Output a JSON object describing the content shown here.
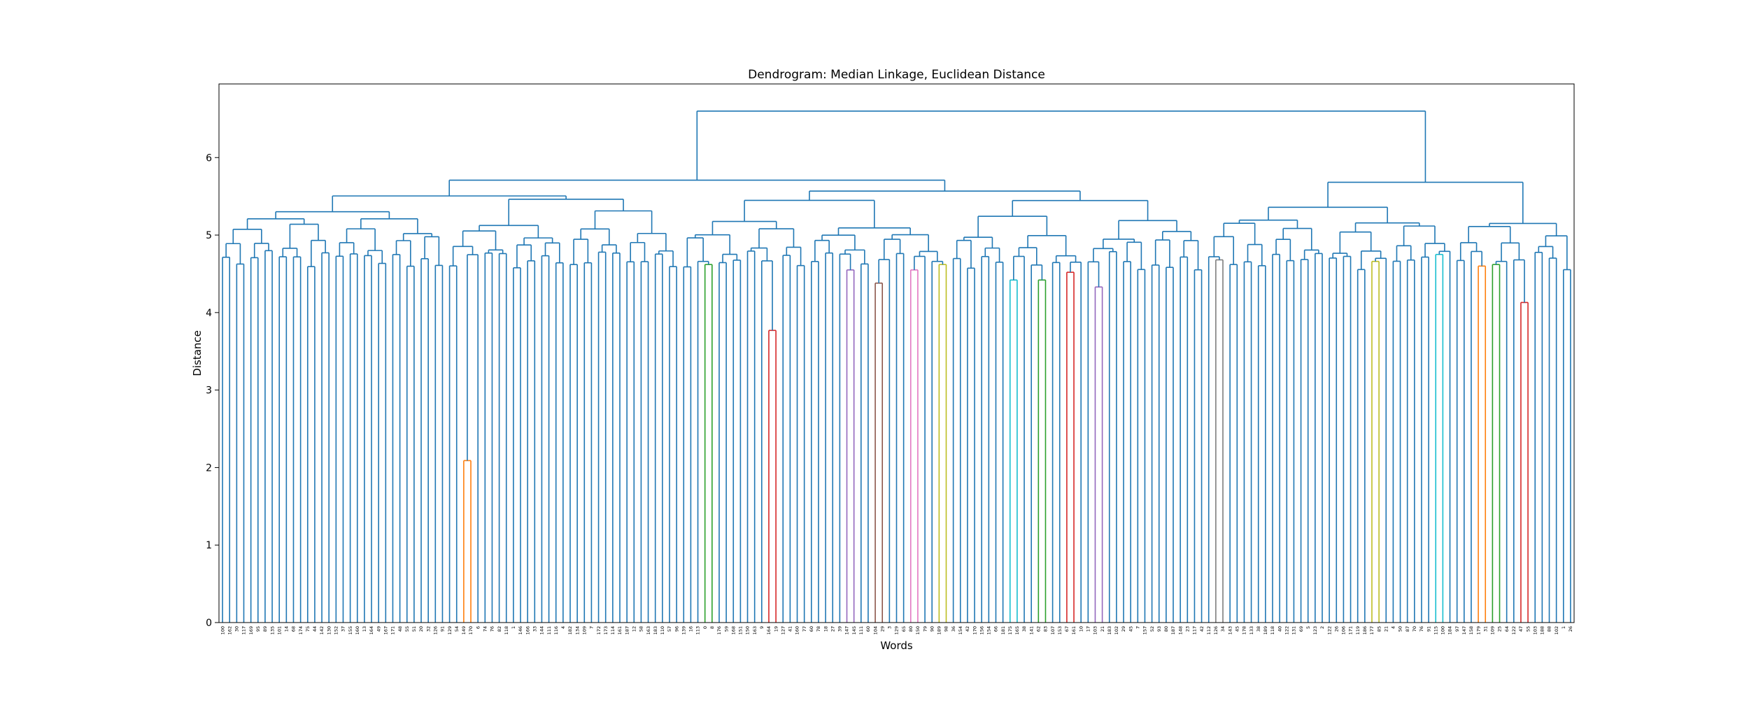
{
  "chart_data": {
    "type": "dendrogram",
    "title": "Dendrogram: Median Linkage, Euclidean Distance",
    "xlabel": "Words",
    "ylabel": "Distance",
    "ylim": [
      0,
      6.95
    ],
    "yticks": [
      0,
      1,
      2,
      3,
      4,
      5,
      6
    ],
    "grid": false,
    "legend": "none",
    "default_link_color": "#1f77b4",
    "leaves": [
      "100",
      "162",
      "30",
      "117",
      "169",
      "95",
      "89",
      "135",
      "101",
      "14",
      "68",
      "174",
      "75",
      "44",
      "142",
      "130",
      "152",
      "37",
      "155",
      "160",
      "13",
      "164",
      "49",
      "167",
      "171",
      "48",
      "55",
      "51",
      "20",
      "32",
      "126",
      "91",
      "129",
      "54",
      "149",
      "170",
      "6",
      "74",
      "76",
      "82",
      "118",
      "1",
      "146",
      "166",
      "33",
      "144",
      "111",
      "116",
      "4",
      "182",
      "134",
      "109",
      "7",
      "172",
      "173",
      "114",
      "161",
      "187",
      "12",
      "58",
      "163",
      "183",
      "110",
      "57",
      "96",
      "139",
      "16",
      "113",
      "0",
      "8",
      "176",
      "59",
      "168",
      "151",
      "150",
      "163",
      "9",
      "164",
      "19",
      "127",
      "41",
      "160",
      "77",
      "60",
      "78",
      "18",
      "27",
      "39",
      "147",
      "145",
      "111",
      "60",
      "104",
      "29",
      "3",
      "129",
      "65",
      "80",
      "150",
      "79",
      "90",
      "189",
      "98",
      "36",
      "154",
      "42",
      "170",
      "156",
      "154",
      "66",
      "181",
      "175",
      "165",
      "38",
      "141",
      "62",
      "83",
      "107",
      "153",
      "67",
      "161",
      "10",
      "17",
      "103",
      "21",
      "183",
      "102",
      "29",
      "45",
      "7",
      "157",
      "52",
      "93",
      "80",
      "187",
      "148",
      "23",
      "117",
      "42",
      "112",
      "126",
      "34",
      "143",
      "45",
      "178",
      "133",
      "38",
      "189",
      "118",
      "40",
      "122",
      "131",
      "69",
      "5",
      "123",
      "2",
      "122",
      "26",
      "106",
      "171",
      "119",
      "186",
      "177",
      "85",
      "21",
      "4",
      "50",
      "87",
      "70",
      "76",
      "91",
      "115",
      "100",
      "184",
      "97",
      "147",
      "158",
      "179",
      "31",
      "109",
      "25",
      "64",
      "122",
      "47",
      "55",
      "103",
      "188",
      "88",
      "102",
      "1",
      "26"
    ],
    "merge_heights": [
      6.6,
      6.52,
      6.15,
      5.95,
      5.87,
      5.73,
      5.5,
      5.45,
      5.27,
      5.2,
      5.05,
      4.95,
      4.8,
      4.7,
      4.62,
      4.55,
      4.5,
      4.42,
      4.38,
      4.3,
      4.2,
      4.15,
      4.05,
      4.02,
      3.9,
      3.77,
      3.64,
      2.51,
      2.09
    ],
    "colored_clusters": [
      {
        "color": "#ff7f0e",
        "height": 2.09
      },
      {
        "color": "#2ca02c",
        "height": 4.62
      },
      {
        "color": "#d62728",
        "height": 3.77
      },
      {
        "color": "#9467bd",
        "height": 4.55
      },
      {
        "color": "#8c564b",
        "height": 4.38
      },
      {
        "color": "#e377c2",
        "height": 4.55
      },
      {
        "color": "#bcbd22",
        "height": 4.62
      },
      {
        "color": "#17becf",
        "height": 4.42
      },
      {
        "color": "#2ca02c",
        "height": 4.42
      },
      {
        "color": "#d62728",
        "height": 4.52
      },
      {
        "color": "#9467bd",
        "height": 4.33
      },
      {
        "color": "#7f7f7f",
        "height": 4.68
      },
      {
        "color": "#bcbd22",
        "height": 4.66
      },
      {
        "color": "#17becf",
        "height": 4.75
      },
      {
        "color": "#ff7f0e",
        "height": 4.6
      },
      {
        "color": "#2ca02c",
        "height": 4.62
      },
      {
        "color": "#d62728",
        "height": 4.13
      }
    ]
  }
}
